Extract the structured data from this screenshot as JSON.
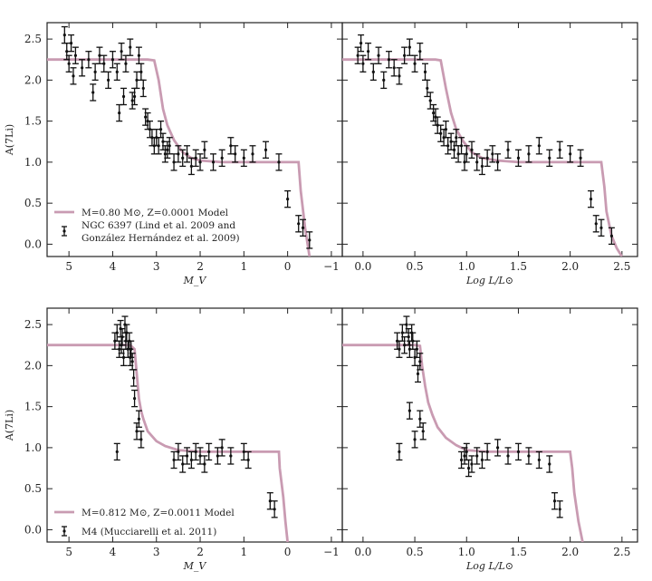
{
  "colors": {
    "model": "#c99bb2",
    "data": "#111111",
    "axis": "#222222"
  },
  "chart_data": [
    {
      "type": "scatter",
      "panel": "top-left",
      "xlabel": "M_V",
      "ylabel": "A(7Li)",
      "xlim": [
        5.5,
        -1.25
      ],
      "ylim": [
        -0.15,
        2.7
      ],
      "xticks": [
        "5",
        "4",
        "3",
        "2",
        "1",
        "0",
        "−1"
      ],
      "yticks": [
        "0.0",
        "0.5",
        "1.0",
        "1.5",
        "2.0",
        "2.5"
      ],
      "legend": {
        "position": "bottom-left",
        "entries": [
          "M=0.80 M⊙, Z=0.0001 Model",
          "NGC 6397 (Lind et al. 2009 and",
          "González Hernández et al. 2009)"
        ]
      },
      "series": [
        {
          "kind": "model",
          "x": [
            5.5,
            3.2,
            3.05,
            2.95,
            2.85,
            2.75,
            2.6,
            2.4,
            2.2,
            2.0,
            1.5,
            1.0,
            0.5,
            0.0,
            -0.25,
            -0.3,
            -0.4,
            -0.5
          ],
          "y": [
            2.25,
            2.25,
            2.24,
            2.0,
            1.65,
            1.45,
            1.27,
            1.12,
            1.05,
            1.02,
            1.0,
            1.0,
            1.0,
            1.0,
            1.0,
            0.65,
            0.2,
            -0.15
          ]
        },
        {
          "kind": "data",
          "x": [
            5.05,
            5.0,
            4.95,
            4.85,
            4.7,
            4.55,
            4.4,
            4.3,
            4.2,
            4.1,
            4.0,
            3.9,
            3.8,
            3.7,
            3.6,
            3.5,
            3.45,
            3.4,
            3.35,
            3.3,
            3.25,
            3.2,
            3.15,
            3.1,
            3.05,
            3.0,
            2.95,
            2.9,
            2.85,
            2.8,
            2.75,
            2.7,
            2.6,
            2.5,
            2.4,
            2.3,
            2.2,
            2.1,
            2.0,
            1.9,
            1.7,
            1.5,
            1.3,
            1.2,
            1.0,
            0.8,
            0.5,
            0.2,
            0.0,
            -0.25,
            -0.35,
            -0.5,
            5.1,
            4.9,
            4.45,
            3.85,
            3.75,
            3.55
          ],
          "y": [
            2.35,
            2.2,
            2.45,
            2.3,
            2.15,
            2.25,
            2.1,
            2.3,
            2.2,
            2.0,
            2.25,
            2.1,
            2.35,
            2.2,
            2.4,
            1.8,
            2.0,
            2.3,
            2.1,
            1.9,
            1.55,
            1.5,
            1.4,
            1.3,
            1.2,
            1.3,
            1.2,
            1.4,
            1.25,
            1.1,
            1.15,
            1.2,
            1.0,
            1.1,
            1.05,
            1.1,
            0.95,
            1.05,
            1.0,
            1.15,
            1.0,
            1.05,
            1.2,
            1.1,
            1.05,
            1.1,
            1.15,
            1.0,
            0.55,
            0.25,
            0.2,
            0.05,
            2.55,
            2.05,
            1.85,
            1.6,
            1.8,
            1.75
          ],
          "yerr": 0.1
        }
      ]
    },
    {
      "type": "scatter",
      "panel": "top-right",
      "xlabel": "Log L/L⊙",
      "ylabel": "",
      "xlim": [
        -0.2,
        2.65
      ],
      "ylim": [
        -0.15,
        2.7
      ],
      "xticks": [
        "0.0",
        "0.5",
        "1.0",
        "1.5",
        "2.0",
        "2.5"
      ],
      "yticks": [],
      "series": [
        {
          "kind": "model",
          "x": [
            -0.2,
            0.5,
            0.7,
            0.75,
            0.8,
            0.85,
            0.9,
            0.97,
            1.05,
            1.15,
            1.3,
            1.5,
            1.8,
            2.0,
            2.3,
            2.33,
            2.35,
            2.4,
            2.45,
            2.5
          ],
          "y": [
            2.25,
            2.25,
            2.25,
            2.24,
            1.9,
            1.6,
            1.4,
            1.25,
            1.12,
            1.05,
            1.02,
            1.0,
            1.0,
            1.0,
            1.0,
            0.7,
            0.4,
            0.1,
            -0.05,
            -0.15
          ]
        },
        {
          "kind": "data",
          "x": [
            -0.05,
            -0.02,
            0.0,
            0.05,
            0.1,
            0.15,
            0.2,
            0.25,
            0.3,
            0.35,
            0.4,
            0.45,
            0.5,
            0.55,
            0.6,
            0.62,
            0.65,
            0.68,
            0.7,
            0.72,
            0.75,
            0.78,
            0.8,
            0.82,
            0.85,
            0.88,
            0.9,
            0.92,
            0.95,
            0.98,
            1.0,
            1.05,
            1.1,
            1.15,
            1.2,
            1.25,
            1.3,
            1.4,
            1.5,
            1.6,
            1.7,
            1.8,
            1.9,
            2.0,
            2.1,
            2.2,
            2.25,
            2.3,
            2.4
          ],
          "y": [
            2.3,
            2.45,
            2.2,
            2.35,
            2.1,
            2.3,
            2.0,
            2.25,
            2.15,
            2.05,
            2.3,
            2.4,
            2.2,
            2.35,
            2.1,
            1.9,
            1.75,
            1.6,
            1.55,
            1.45,
            1.35,
            1.3,
            1.4,
            1.2,
            1.25,
            1.15,
            1.3,
            1.1,
            1.2,
            1.0,
            1.1,
            1.15,
            1.0,
            0.95,
            1.05,
            1.1,
            1.0,
            1.15,
            1.05,
            1.1,
            1.2,
            1.05,
            1.15,
            1.1,
            1.05,
            0.55,
            0.25,
            0.2,
            0.1
          ],
          "yerr": 0.1
        }
      ]
    },
    {
      "type": "scatter",
      "panel": "bottom-left",
      "xlabel": "M_V",
      "ylabel": "A(7Li)",
      "xlim": [
        5.5,
        -1.25
      ],
      "ylim": [
        -0.15,
        2.7
      ],
      "xticks": [
        "5",
        "4",
        "3",
        "2",
        "1",
        "0",
        "−1"
      ],
      "yticks": [
        "0.0",
        "0.5",
        "1.0",
        "1.5",
        "2.0",
        "2.5"
      ],
      "legend": {
        "position": "bottom-left",
        "entries": [
          "M=0.812 M⊙, Z=0.0011 Model",
          "M4 (Mucciarelli et al. 2011)"
        ]
      },
      "series": [
        {
          "kind": "model",
          "x": [
            5.5,
            3.6,
            3.5,
            3.45,
            3.4,
            3.35,
            3.3,
            3.2,
            3.0,
            2.8,
            2.5,
            2.0,
            1.5,
            1.0,
            0.5,
            0.2,
            0.18,
            0.1,
            0.05,
            0.0
          ],
          "y": [
            2.25,
            2.25,
            2.2,
            1.9,
            1.6,
            1.45,
            1.35,
            1.2,
            1.08,
            1.02,
            0.97,
            0.95,
            0.95,
            0.95,
            0.95,
            0.95,
            0.75,
            0.4,
            0.1,
            -0.15
          ]
        },
        {
          "kind": "data",
          "x": [
            3.95,
            3.9,
            3.85,
            3.82,
            3.8,
            3.78,
            3.75,
            3.72,
            3.7,
            3.68,
            3.65,
            3.62,
            3.6,
            3.58,
            3.55,
            3.52,
            3.5,
            3.45,
            3.4,
            3.35,
            3.9,
            2.6,
            2.5,
            2.4,
            2.3,
            2.2,
            2.1,
            2.0,
            1.9,
            1.8,
            1.6,
            1.5,
            1.3,
            1.0,
            0.9,
            0.4,
            0.3
          ],
          "y": [
            2.3,
            2.4,
            2.2,
            2.45,
            2.25,
            2.35,
            2.1,
            2.5,
            2.3,
            2.4,
            2.2,
            2.3,
            2.1,
            2.2,
            2.05,
            1.85,
            1.6,
            1.2,
            1.35,
            1.1,
            0.95,
            0.85,
            0.95,
            0.8,
            0.9,
            0.85,
            0.95,
            0.9,
            0.8,
            0.95,
            0.9,
            1.0,
            0.9,
            0.95,
            0.85,
            0.35,
            0.25
          ],
          "yerr": 0.1
        }
      ]
    },
    {
      "type": "scatter",
      "panel": "bottom-right",
      "xlabel": "Log L/L⊙",
      "ylabel": "",
      "xlim": [
        -0.2,
        2.65
      ],
      "ylim": [
        -0.15,
        2.7
      ],
      "xticks": [
        "0.0",
        "0.5",
        "1.0",
        "1.5",
        "2.0",
        "2.5"
      ],
      "yticks": [],
      "series": [
        {
          "kind": "model",
          "x": [
            -0.2,
            0.5,
            0.55,
            0.57,
            0.6,
            0.63,
            0.67,
            0.72,
            0.8,
            0.9,
            1.0,
            1.2,
            1.5,
            1.8,
            2.0,
            2.02,
            2.04,
            2.08,
            2.12
          ],
          "y": [
            2.25,
            2.25,
            2.24,
            2.0,
            1.75,
            1.55,
            1.4,
            1.25,
            1.12,
            1.03,
            0.97,
            0.95,
            0.95,
            0.95,
            0.95,
            0.75,
            0.45,
            0.1,
            -0.15
          ]
        },
        {
          "kind": "data",
          "x": [
            0.33,
            0.35,
            0.38,
            0.4,
            0.42,
            0.44,
            0.45,
            0.47,
            0.48,
            0.5,
            0.52,
            0.53,
            0.55,
            0.35,
            0.45,
            0.5,
            0.55,
            0.58,
            0.95,
            1.0,
            1.05,
            1.1,
            1.15,
            1.2,
            1.3,
            1.4,
            1.5,
            1.6,
            1.7,
            1.8,
            1.85,
            1.9,
            0.98,
            1.02
          ],
          "y": [
            2.3,
            2.2,
            2.4,
            2.25,
            2.5,
            2.35,
            2.2,
            2.4,
            2.3,
            2.1,
            2.2,
            1.9,
            2.05,
            0.95,
            1.45,
            1.1,
            1.35,
            1.2,
            0.85,
            0.95,
            0.8,
            0.9,
            0.85,
            0.95,
            1.0,
            0.9,
            0.95,
            0.9,
            0.85,
            0.8,
            0.35,
            0.25,
            0.9,
            0.75
          ],
          "yerr": 0.1
        }
      ]
    }
  ]
}
